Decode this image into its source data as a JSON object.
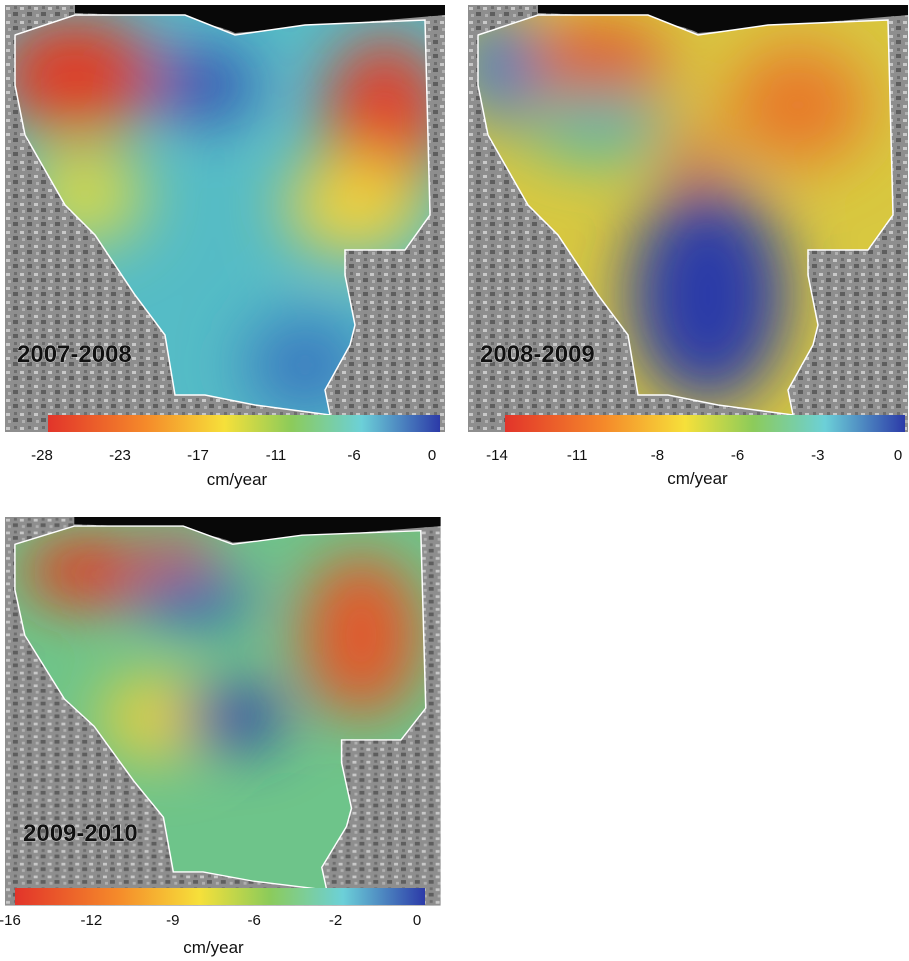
{
  "panels": [
    {
      "label": "2007-2008",
      "ticks": [
        -28,
        -23,
        -17,
        -11,
        -6,
        0
      ],
      "unit": "cm/year"
    },
    {
      "label": "2008-2009",
      "ticks": [
        -14,
        -11,
        -8,
        -6,
        -3,
        0
      ],
      "unit": "cm/year"
    },
    {
      "label": "2009-2010",
      "ticks": [
        -16,
        -12,
        -9,
        -6,
        -2,
        0
      ],
      "unit": "cm/year"
    }
  ]
}
